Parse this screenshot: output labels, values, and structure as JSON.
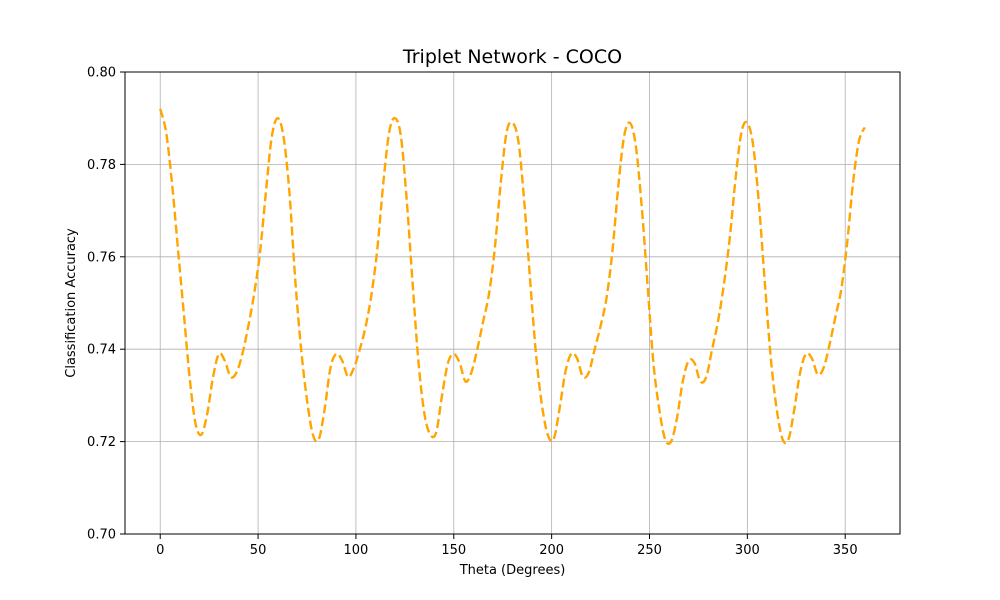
{
  "chart_data": {
    "type": "line",
    "title": "Triplet Network - COCO",
    "xlabel": "Theta (Degrees)",
    "ylabel": "Classification Accuracy",
    "xlim": [
      -18,
      378
    ],
    "ylim": [
      0.7,
      0.8
    ],
    "xticks": [
      0,
      50,
      100,
      150,
      200,
      250,
      300,
      350
    ],
    "yticks": [
      0.7,
      0.72,
      0.74,
      0.76,
      0.78,
      0.8
    ],
    "ytick_labels": [
      "0.70",
      "0.72",
      "0.74",
      "0.76",
      "0.78",
      "0.80"
    ],
    "xtick_labels": [
      "0",
      "50",
      "100",
      "150",
      "200",
      "250",
      "300",
      "350"
    ],
    "grid": true,
    "series": [
      {
        "color": "#ffa500",
        "linestyle": "dashed",
        "x": [
          0,
          3,
          6,
          9,
          12,
          15,
          18,
          21,
          24,
          27,
          30,
          33,
          36,
          39,
          42,
          45,
          48,
          51,
          54,
          57,
          60,
          63,
          66,
          69,
          72,
          75,
          78,
          81,
          84,
          87,
          90,
          93,
          96,
          99,
          102,
          105,
          108,
          111,
          114,
          117,
          120,
          123,
          126,
          129,
          132,
          135,
          138,
          141,
          144,
          147,
          150,
          153,
          156,
          159,
          162,
          165,
          168,
          171,
          174,
          177,
          180,
          183,
          186,
          189,
          192,
          195,
          198,
          201,
          204,
          207,
          210,
          213,
          216,
          219,
          222,
          225,
          228,
          231,
          234,
          237,
          240,
          243,
          246,
          249,
          252,
          255,
          258,
          261,
          264,
          267,
          270,
          273,
          276,
          279,
          282,
          285,
          288,
          291,
          294,
          297,
          300,
          303,
          306,
          309,
          312,
          315,
          318,
          321,
          324,
          327,
          330,
          333,
          336,
          339,
          342,
          345,
          348,
          351,
          354,
          357,
          360
        ],
        "y": [
          0.792,
          0.787,
          0.776,
          0.762,
          0.748,
          0.734,
          0.724,
          0.7215,
          0.726,
          0.734,
          0.739,
          0.7375,
          0.734,
          0.735,
          0.739,
          0.745,
          0.752,
          0.761,
          0.774,
          0.786,
          0.79,
          0.786,
          0.774,
          0.755,
          0.74,
          0.729,
          0.7215,
          0.7205,
          0.727,
          0.736,
          0.739,
          0.7375,
          0.734,
          0.736,
          0.74,
          0.745,
          0.752,
          0.762,
          0.776,
          0.787,
          0.79,
          0.786,
          0.772,
          0.754,
          0.737,
          0.726,
          0.7215,
          0.722,
          0.73,
          0.737,
          0.739,
          0.737,
          0.733,
          0.735,
          0.74,
          0.746,
          0.752,
          0.762,
          0.776,
          0.787,
          0.789,
          0.785,
          0.772,
          0.755,
          0.739,
          0.728,
          0.7215,
          0.7205,
          0.727,
          0.735,
          0.739,
          0.738,
          0.734,
          0.735,
          0.74,
          0.745,
          0.751,
          0.761,
          0.775,
          0.786,
          0.789,
          0.784,
          0.771,
          0.754,
          0.737,
          0.727,
          0.7205,
          0.72,
          0.725,
          0.733,
          0.7375,
          0.737,
          0.733,
          0.734,
          0.74,
          0.746,
          0.754,
          0.764,
          0.777,
          0.787,
          0.789,
          0.784,
          0.771,
          0.754,
          0.738,
          0.727,
          0.7205,
          0.7205,
          0.727,
          0.735,
          0.739,
          0.738,
          0.7345,
          0.736,
          0.741,
          0.747,
          0.753,
          0.763,
          0.776,
          0.785,
          0.788
        ]
      }
    ]
  }
}
